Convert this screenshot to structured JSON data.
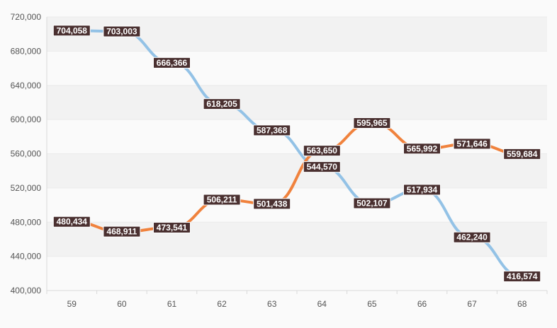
{
  "chart_data": {
    "type": "line",
    "title": "",
    "xlabel": "",
    "ylabel": "",
    "categories": [
      "59",
      "60",
      "61",
      "62",
      "63",
      "64",
      "65",
      "66",
      "67",
      "68"
    ],
    "ylim": [
      400000,
      720000
    ],
    "y_ticks": [
      400000,
      440000,
      480000,
      520000,
      560000,
      600000,
      640000,
      680000,
      720000
    ],
    "y_tick_labels": [
      "400,000",
      "440,000",
      "480,000",
      "520,000",
      "560,000",
      "600,000",
      "640,000",
      "680,000",
      "720,000"
    ],
    "grid": "horizontal alternating bands",
    "legend": "none",
    "series": [
      {
        "color": "#93c2e6",
        "values": [
          704058,
          703003,
          666366,
          618205,
          587368,
          544570,
          502107,
          517934,
          462240,
          416574
        ],
        "labels": [
          "704,058",
          "703,003",
          "666,366",
          "618,205",
          "587,368",
          "544,570",
          "502,107",
          "517,934",
          "462,240",
          "416,574"
        ]
      },
      {
        "color": "#f0823d",
        "values": [
          480434,
          468911,
          473541,
          506211,
          501438,
          563650,
          595965,
          565992,
          571646,
          559684
        ],
        "labels": [
          "480,434",
          "468,911",
          "473,541",
          "506,211",
          "501,438",
          "563,650",
          "595,965",
          "565,992",
          "571,646",
          "559,684"
        ]
      }
    ],
    "label_style": {
      "background": "#4a3030",
      "text_color": "#ffffff"
    }
  }
}
